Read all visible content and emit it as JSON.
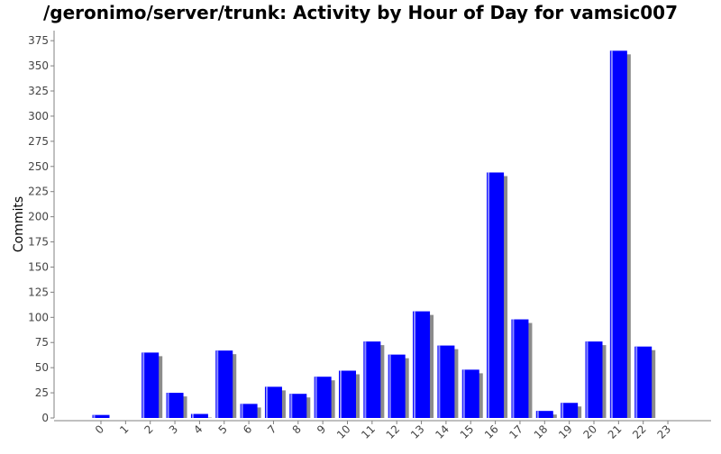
{
  "chart_data": {
    "type": "bar",
    "title": "/geronimo/server/trunk: Activity by Hour of Day for vamsic007",
    "xlabel": "",
    "ylabel": "Commits",
    "categories": [
      "0",
      "1",
      "2",
      "3",
      "4",
      "5",
      "6",
      "7",
      "8",
      "9",
      "10",
      "11",
      "12",
      "13",
      "14",
      "15",
      "16",
      "17",
      "18",
      "19",
      "20",
      "21",
      "22",
      "23"
    ],
    "values": [
      3,
      0,
      65,
      25,
      4,
      67,
      14,
      31,
      24,
      41,
      47,
      76,
      63,
      106,
      72,
      48,
      244,
      98,
      7,
      15,
      76,
      365,
      71,
      0
    ],
    "ylim": [
      0,
      385
    ],
    "yticks": [
      0,
      25,
      50,
      75,
      100,
      125,
      150,
      175,
      200,
      225,
      250,
      275,
      300,
      325,
      350,
      375
    ],
    "grid": false,
    "legend": "none",
    "colors": {
      "bar": "#0000ff",
      "bar_highlight": "#8c8cff",
      "shadow": "#8c8c8c",
      "axis": "#808080",
      "tick_label": "#444444"
    }
  }
}
